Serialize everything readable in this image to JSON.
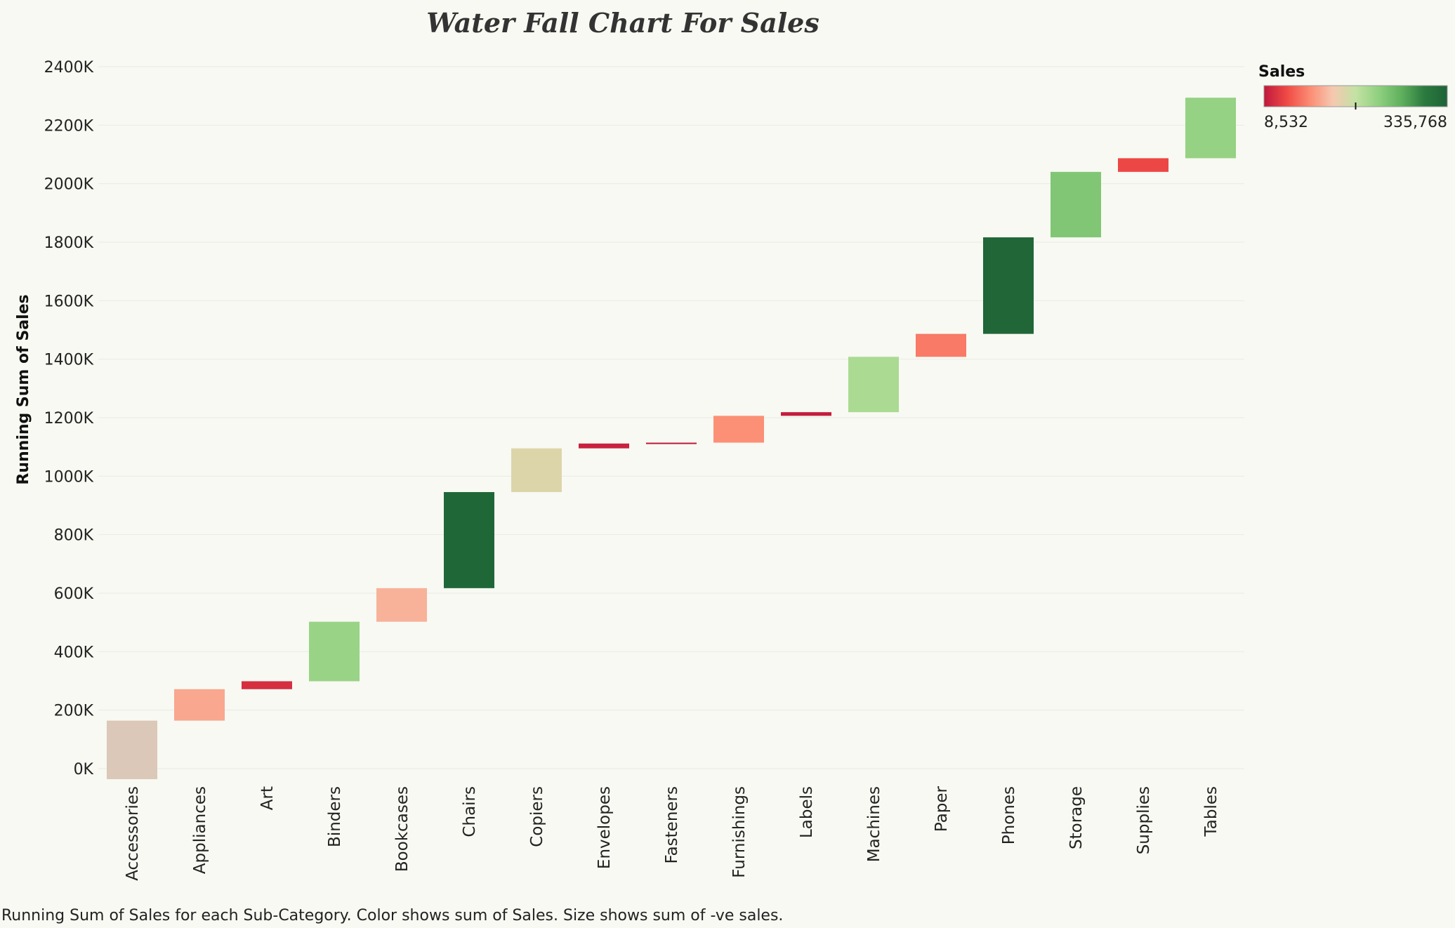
{
  "chart_data": {
    "type": "bar",
    "subtype": "waterfall",
    "title": "Water Fall Chart For Sales",
    "ylabel": "Running Sum of Sales",
    "xlabel": "",
    "ylim": [
      -40000,
      2400000
    ],
    "yticks": [
      0,
      200000,
      400000,
      600000,
      800000,
      1000000,
      1200000,
      1400000,
      1600000,
      1800000,
      2000000,
      2200000,
      2400000
    ],
    "ytick_labels": [
      "0K",
      "200K",
      "400K",
      "600K",
      "800K",
      "1000K",
      "1200K",
      "1400K",
      "1600K",
      "1800K",
      "2000K",
      "2200K",
      "2400K"
    ],
    "categories": [
      "Accessories",
      "Appliances",
      "Art",
      "Binders",
      "Bookcases",
      "Chairs",
      "Copiers",
      "Envelopes",
      "Fasteners",
      "Furnishings",
      "Labels",
      "Machines",
      "Paper",
      "Phones",
      "Storage",
      "Supplies",
      "Tables"
    ],
    "values": [
      164186,
      107532,
      27119,
      203413,
      114880,
      328449,
      149528,
      16476,
      3024,
      91705,
      12486,
      189239,
      78479,
      330007,
      223844,
      46674,
      206966
    ],
    "running_sum": [
      164186,
      271718,
      298837,
      502250,
      617130,
      945579,
      1095107,
      1111583,
      1114607,
      1206312,
      1218798,
      1408037,
      1486516,
      1816523,
      2040367,
      2087041,
      2294007
    ],
    "grid": true,
    "legend": {
      "title": "Sales",
      "min_label": "8,532",
      "max_label": "335,768",
      "min": 8532,
      "max": 335768,
      "center": 170000,
      "placement": "top-right",
      "palette": [
        "#c0183c",
        "#ef4a45",
        "#fb8c73",
        "#f6c8b0",
        "#c3e2a4",
        "#8fd07f",
        "#5fb05e",
        "#2b7a3f",
        "#1e6336"
      ]
    }
  },
  "caption": "Running Sum of Sales for each Sub-Category.  Color shows sum of Sales.  Size shows sum of -ve sales."
}
